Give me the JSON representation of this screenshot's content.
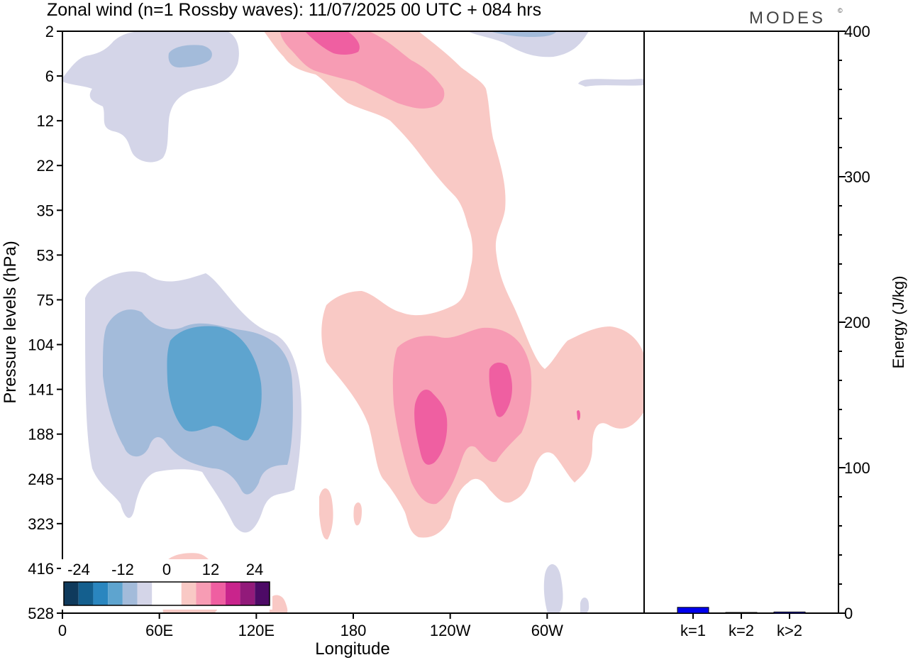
{
  "title": "Zonal wind (n=1 Rossby waves):  11/07/2025  00 UTC  + 084 hrs",
  "logo": "MODES",
  "logo_mark": "©",
  "chart_data": [
    {
      "type": "heatmap",
      "name": "zonal-wind-contour",
      "xlabel": "Longitude",
      "ylabel": "Pressure levels (hPa)",
      "x_ticks": [
        "0",
        "60E",
        "120E",
        "180",
        "120W",
        "60W"
      ],
      "x_tick_values": [
        0,
        60,
        120,
        180,
        240,
        300
      ],
      "xlim": [
        0,
        360
      ],
      "y_ticks": [
        "2",
        "6",
        "12",
        "22",
        "35",
        "53",
        "75",
        "104",
        "141",
        "188",
        "248",
        "323",
        "416",
        "528"
      ],
      "colorbar": {
        "tick_labels": [
          "-24",
          "-12",
          "0",
          "12",
          "24"
        ],
        "colors": [
          "#0f3a5c",
          "#145f8e",
          "#2a86bf",
          "#5ea4cf",
          "#a3bbda",
          "#d4d5e8",
          "#ffffff",
          "#ffffff",
          "#f9c9c5",
          "#f79cb4",
          "#ef5fa1",
          "#c9248c",
          "#921a7a",
          "#4d0a66"
        ]
      },
      "regions": [
        {
          "sign": "negative",
          "level": -4,
          "color": "#d4d5e8",
          "description": "outer negative, 0-150E lower"
        },
        {
          "sign": "negative",
          "level": -8,
          "color": "#a3bbda"
        },
        {
          "sign": "negative",
          "level": -12,
          "color": "#5ea4cf"
        },
        {
          "sign": "positive",
          "level": 4,
          "color": "#f9c9c5"
        },
        {
          "sign": "positive",
          "level": 8,
          "color": "#f79cb4"
        },
        {
          "sign": "positive",
          "level": 12,
          "color": "#ef5fa1"
        }
      ]
    },
    {
      "type": "bar",
      "name": "energy-bars",
      "ylabel": "Energy (J/kg)",
      "categories": [
        "k=1",
        "k=2",
        "k>2"
      ],
      "values": [
        4,
        0.3,
        0.8
      ],
      "colors": [
        "#0000ee",
        "#0000ee",
        "#0000ee"
      ],
      "y_ticks": [
        "0",
        "100",
        "200",
        "300",
        "400"
      ],
      "y_tick_values": [
        0,
        100,
        200,
        300,
        400
      ],
      "ylim": [
        0,
        400
      ]
    }
  ]
}
